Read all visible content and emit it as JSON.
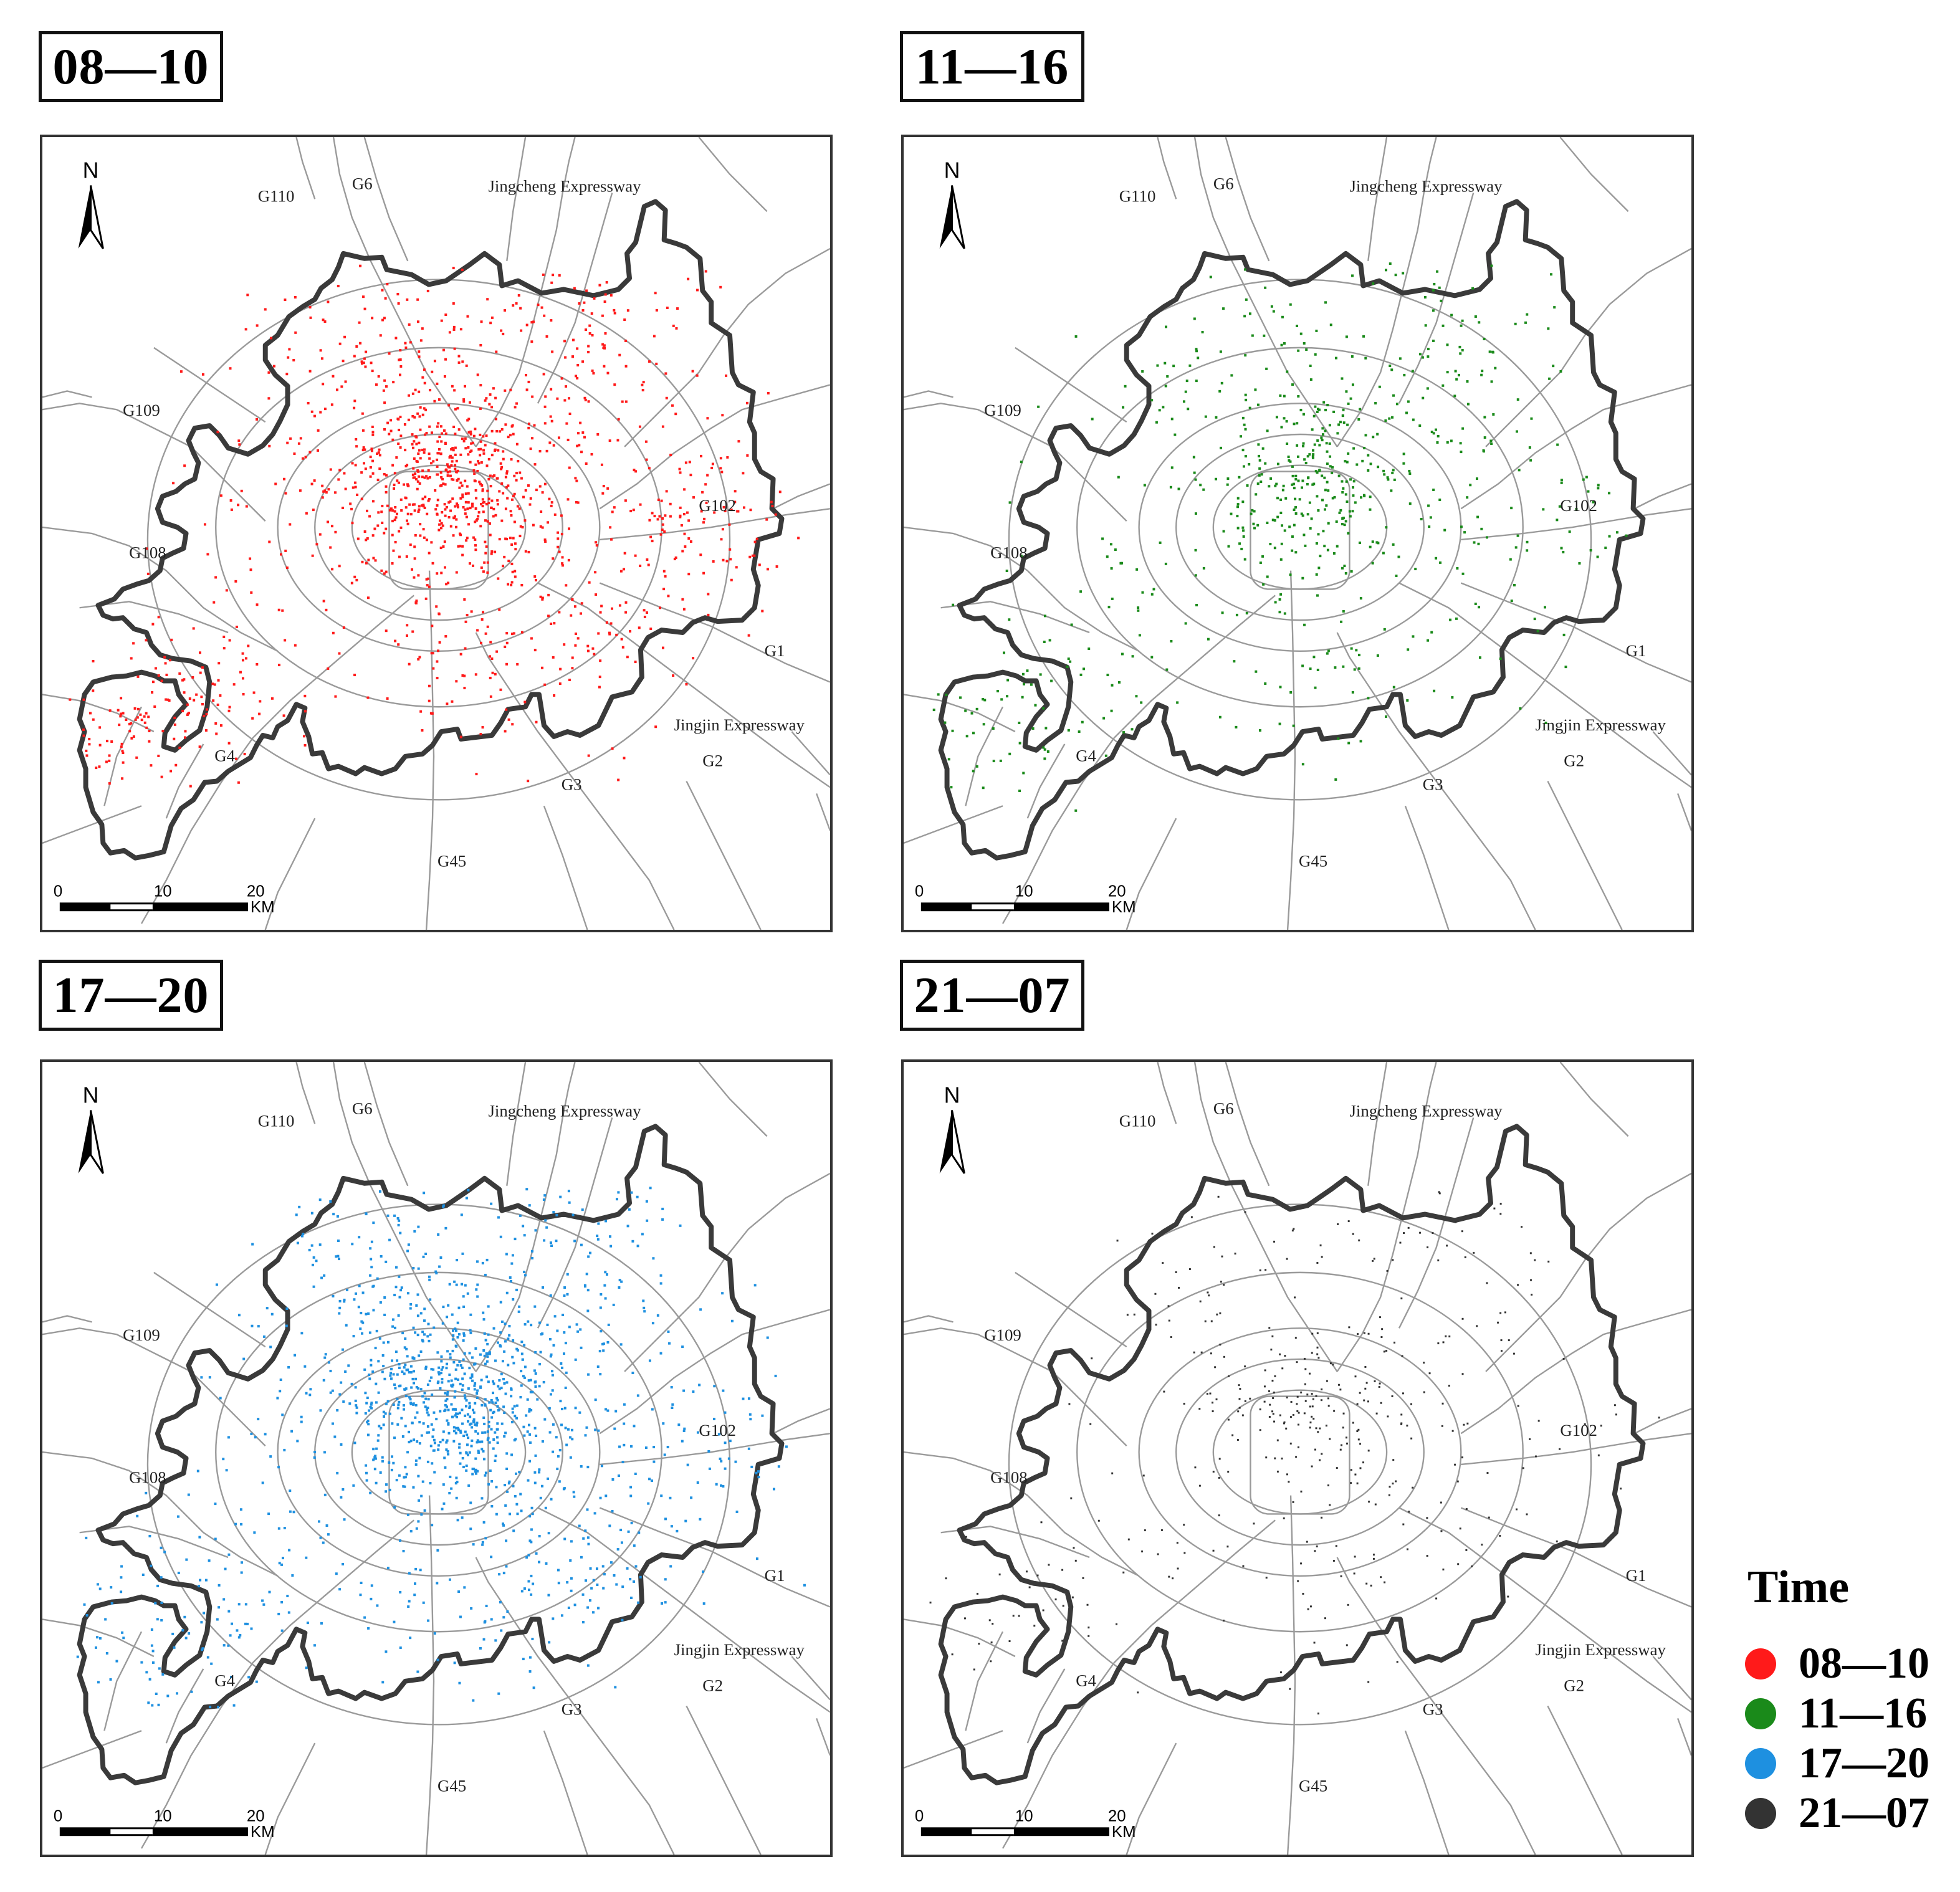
{
  "panels": [
    {
      "title": "08—10",
      "color": "#ff1a1a",
      "density": "high"
    },
    {
      "title": "11—16",
      "color": "#1a8a1a",
      "density": "medium"
    },
    {
      "title": "17—20",
      "color": "#1e90e0",
      "density": "high"
    },
    {
      "title": "21—07",
      "color": "#333333",
      "density": "low"
    }
  ],
  "map": {
    "north": "N",
    "scale": {
      "ticks": [
        "0",
        "10",
        "20"
      ],
      "unit": "KM"
    },
    "roads": {
      "g110": "G110",
      "g6": "G6",
      "jingcheng": "Jingcheng Expressway",
      "g109": "G109",
      "g102": "G102",
      "g108": "G108",
      "g1": "G1",
      "jingjin": "Jingjin Expressway",
      "g4": "G4",
      "g2": "G2",
      "g3": "G3",
      "g45": "G45"
    }
  },
  "legend": {
    "title": "Time",
    "items": [
      {
        "label": "08—10",
        "color": "#ff1a1a"
      },
      {
        "label": "11—16",
        "color": "#1a8a1a"
      },
      {
        "label": "17—20",
        "color": "#1e90e0"
      },
      {
        "label": "21—07",
        "color": "#333333"
      }
    ]
  }
}
